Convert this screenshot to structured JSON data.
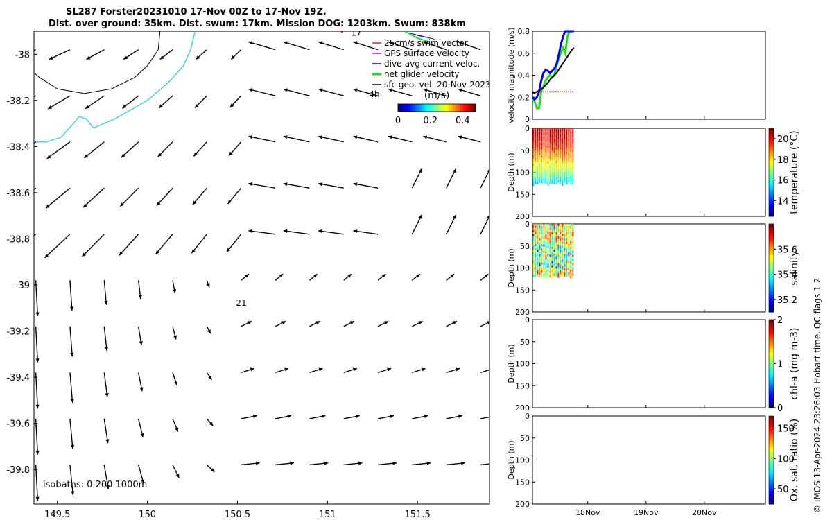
{
  "title_line1": "SL287 Forster20231010 17-Nov 00Z to 17-Nov 19Z.",
  "title_line2": "Dist. over ground: 35km. Dist. swum: 17km. Mission DOG: 1203km. Swum: 838km",
  "credit": "© IMOS 13-Apr-2024 23:26:03 Hobart time. QC flags 1  2",
  "colors": {
    "swim_vector": "#d62728",
    "gps_velocity": "#e000e0",
    "dive_avg": "#0000ff",
    "net_velocity": "#22dd22",
    "geo_vel": "#000000",
    "coast": "#3fd8d8",
    "isobath": "#000000"
  },
  "chart_data": [
    {
      "type": "quiver",
      "name": "map",
      "xlim": [
        149.37,
        151.9
      ],
      "ylim": [
        -39.95,
        -37.9
      ],
      "xticks": [
        149.5,
        150,
        150.5,
        151,
        151.5
      ],
      "xtick_labels": [
        "149.5",
        "150",
        "150.5",
        "151",
        "151.5"
      ],
      "yticks": [
        -38,
        -38.2,
        -38.4,
        -38.6,
        -38.8,
        -39,
        -39.2,
        -39.4,
        -39.6,
        -39.8
      ],
      "ytick_labels": [
        "-38",
        "-38.2",
        "-38.4",
        "-38.6",
        "-38.8",
        "-39",
        "-39.2",
        "-39.4",
        "-39.6",
        "-39.8"
      ],
      "grid_lon": [
        149.38,
        149.57,
        149.76,
        149.95,
        150.14,
        150.33,
        150.52,
        150.71,
        150.9,
        151.09,
        151.28,
        151.47,
        151.66,
        151.85
      ],
      "grid_lat": [
        -37.98,
        -38.18,
        -38.38,
        -38.58,
        -38.78,
        -38.98,
        -39.18,
        -39.38,
        -39.58,
        -39.78
      ],
      "legend": {
        "items": [
          "25cm/s swim vector",
          "GPS surface velocity",
          "dive-avg current veloc.",
          "net glider velocity",
          "sfc geo. vel. 20-Nov-2023"
        ],
        "colorbar_title": "(m/s)",
        "colorbar_ticks": [
          "0",
          "0.2",
          "0.4"
        ],
        "colorbar_range": [
          0,
          0.48
        ]
      },
      "annotations": [
        "17",
        "4h",
        "21"
      ],
      "isobath_label": "isobaths: 0   200  1000m"
    },
    {
      "type": "line",
      "name": "velocity",
      "ylabel": "velocity magnitude (m/s)",
      "ylim": [
        0,
        0.8
      ],
      "yticks": [
        "0",
        "0.2",
        "0.4",
        "0.6",
        "0.8"
      ],
      "time_range": [
        "17-Nov 00Z",
        "17-Nov 19Z"
      ],
      "series": [
        {
          "key": "net",
          "values": [
            0.18,
            0.16,
            0.1,
            0.1,
            0.25,
            0.3,
            0.35,
            0.38,
            0.4,
            0.38,
            0.4,
            0.48,
            0.55,
            0.6,
            0.65,
            0.6,
            0.75,
            0.8,
            0.8,
            0.8
          ]
        },
        {
          "key": "dive",
          "values": [
            0.2,
            0.18,
            0.2,
            0.25,
            0.35,
            0.42,
            0.45,
            0.44,
            0.42,
            0.44,
            0.46,
            0.5,
            0.58,
            0.68,
            0.75,
            0.8,
            0.8,
            0.8,
            0.8,
            0.8
          ]
        },
        {
          "key": "geo",
          "values": [
            0.24,
            0.24,
            0.25,
            0.26,
            0.27,
            0.29,
            0.31,
            0.33,
            0.36,
            0.38,
            0.4,
            0.42,
            0.45,
            0.48,
            0.51,
            0.54,
            0.57,
            0.6,
            0.63,
            0.65
          ]
        },
        {
          "key": "swim",
          "values": [
            0.25,
            0.25,
            0.25,
            0.25,
            0.25,
            0.25,
            0.25,
            0.25,
            0.25,
            0.25,
            0.25,
            0.25,
            0.25,
            0.25,
            0.25,
            0.25,
            0.25,
            0.25,
            0.25,
            0.25
          ]
        }
      ]
    },
    {
      "type": "heatmap",
      "name": "temperature",
      "ylabel": "Depth (m)",
      "clabel": "temperature (°C)",
      "ylim": [
        0,
        200
      ],
      "yticks": [
        "0",
        "50",
        "100",
        "150",
        "200"
      ],
      "clim": [
        12.5,
        21
      ],
      "cticks": [
        "14",
        "16",
        "18",
        "20"
      ],
      "max_depth": 130,
      "profiles": 20
    },
    {
      "type": "heatmap",
      "name": "salinity",
      "ylabel": "Depth (m)",
      "clabel": "salinity",
      "ylim": [
        0,
        200
      ],
      "yticks": [
        "0",
        "50",
        "100",
        "150",
        "200"
      ],
      "clim": [
        35.1,
        35.8
      ],
      "cticks": [
        "35.2",
        "35.4",
        "35.6"
      ],
      "max_depth": 125,
      "profiles": 20
    },
    {
      "type": "heatmap",
      "name": "chla",
      "ylabel": "Depth (m)",
      "clabel": "chl-a (mg m-3)",
      "ylim": [
        0,
        200
      ],
      "yticks": [
        "0",
        "50",
        "100",
        "150",
        "200"
      ],
      "clim": [
        0,
        2
      ],
      "cticks": [
        "0",
        "1",
        "2"
      ]
    },
    {
      "type": "heatmap",
      "name": "oxygen",
      "ylabel": "Depth (m)",
      "clabel": "Ox. sat. ratio (%)",
      "ylim": [
        0,
        200
      ],
      "yticks": [
        "0",
        "50",
        "100",
        "150",
        "200"
      ],
      "clim": [
        25,
        170
      ],
      "cticks": [
        "50",
        "100",
        "150"
      ],
      "xtick_labels": [
        "18Nov",
        "19Nov",
        "20Nov"
      ]
    }
  ]
}
